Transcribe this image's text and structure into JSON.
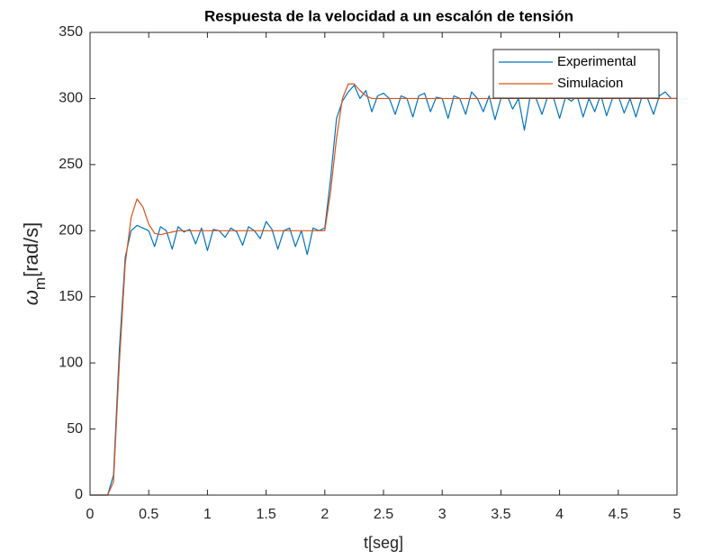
{
  "chart_data": {
    "type": "line",
    "title": "Respuesta de la velocidad a un escalón de tensión",
    "xlabel": "t[seg]",
    "ylabel": {
      "symbol": "ω",
      "subscript": "m",
      "unit": "[rad/s]"
    },
    "x": [
      0,
      0.05,
      0.1,
      0.15,
      0.2,
      0.25,
      0.3,
      0.35,
      0.4,
      0.45,
      0.5,
      0.55,
      0.6,
      0.65,
      0.7,
      0.75,
      0.8,
      0.85,
      0.9,
      0.95,
      1,
      1.05,
      1.1,
      1.15,
      1.2,
      1.25,
      1.3,
      1.35,
      1.4,
      1.45,
      1.5,
      1.55,
      1.6,
      1.65,
      1.7,
      1.75,
      1.8,
      1.85,
      1.9,
      1.95,
      2,
      2.05,
      2.1,
      2.15,
      2.2,
      2.25,
      2.3,
      2.35,
      2.4,
      2.45,
      2.5,
      2.55,
      2.6,
      2.65,
      2.7,
      2.75,
      2.8,
      2.85,
      2.9,
      2.95,
      3,
      3.05,
      3.1,
      3.15,
      3.2,
      3.25,
      3.3,
      3.35,
      3.4,
      3.45,
      3.5,
      3.55,
      3.6,
      3.65,
      3.7,
      3.75,
      3.8,
      3.85,
      3.9,
      3.95,
      4,
      4.05,
      4.1,
      4.15,
      4.2,
      4.25,
      4.3,
      4.35,
      4.4,
      4.45,
      4.5,
      4.55,
      4.6,
      4.65,
      4.7,
      4.75,
      4.8,
      4.85,
      4.9,
      4.95,
      5
    ],
    "series": [
      {
        "name": "Experimental",
        "color": "#0072BD",
        "values": [
          0,
          0,
          0,
          0,
          15,
          110,
          180,
          200,
          204,
          202,
          200,
          188,
          203,
          200,
          186,
          203,
          199,
          201,
          190,
          202,
          185,
          201,
          200,
          195,
          202,
          199,
          189,
          203,
          200,
          194,
          207,
          201,
          186,
          200,
          202,
          188,
          200,
          182,
          202,
          200,
          202,
          240,
          285,
          298,
          305,
          310,
          300,
          306,
          290,
          302,
          304,
          300,
          288,
          302,
          300,
          286,
          302,
          304,
          290,
          301,
          300,
          285,
          302,
          300,
          288,
          305,
          300,
          290,
          302,
          284,
          300,
          303,
          292,
          300,
          276,
          302,
          300,
          288,
          302,
          300,
          285,
          301,
          298,
          302,
          286,
          300,
          290,
          303,
          287,
          300,
          302,
          289,
          300,
          286,
          301,
          300,
          288,
          302,
          305,
          300,
          300
        ]
      },
      {
        "name": "Simulacion",
        "color": "#D95319",
        "values": [
          0,
          0,
          0,
          0,
          10,
          100,
          175,
          210,
          224,
          218,
          205,
          198,
          197,
          198,
          199,
          200,
          200,
          200,
          200,
          200,
          200,
          200,
          200,
          200,
          200,
          200,
          200,
          200,
          200,
          200,
          200,
          200,
          200,
          200,
          200,
          200,
          200,
          200,
          200,
          200,
          200,
          230,
          270,
          300,
          311,
          311,
          306,
          302,
          300,
          300,
          300,
          300,
          300,
          300,
          300,
          300,
          300,
          300,
          300,
          300,
          300,
          300,
          300,
          300,
          300,
          300,
          300,
          300,
          300,
          300,
          300,
          300,
          300,
          300,
          300,
          300,
          300,
          300,
          300,
          300,
          300,
          300,
          300,
          300,
          300,
          300,
          300,
          300,
          300,
          300,
          300,
          300,
          300,
          300,
          300,
          300,
          300,
          300,
          300,
          300,
          300
        ]
      }
    ],
    "xlim": [
      0,
      5
    ],
    "ylim": [
      0,
      350
    ],
    "xticks": [
      0,
      0.5,
      1,
      1.5,
      2,
      2.5,
      3,
      3.5,
      4,
      4.5,
      5
    ],
    "yticks": [
      0,
      50,
      100,
      150,
      200,
      250,
      300,
      350
    ],
    "grid": false,
    "legend": "northeast"
  }
}
